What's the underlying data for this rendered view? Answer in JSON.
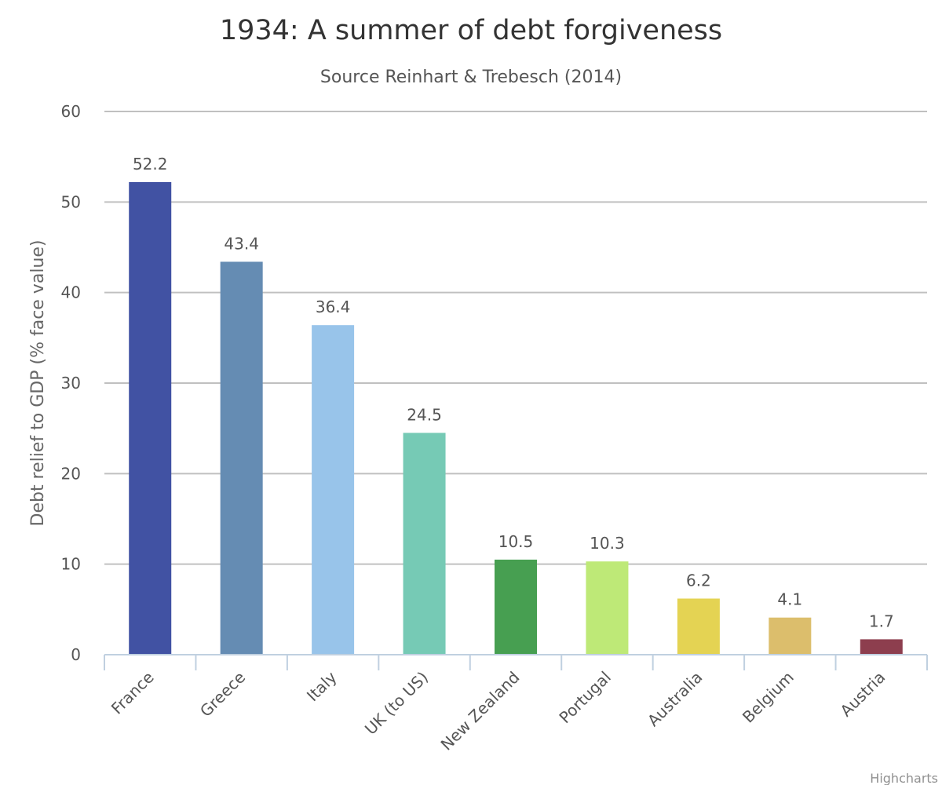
{
  "chart_data": {
    "type": "bar",
    "title": "1934: A summer of debt forgiveness",
    "subtitle": "Source Reinhart & Trebesch (2014)",
    "xlabel": "",
    "ylabel": "Debt relief to GDP (% face value)",
    "ylim": [
      0,
      60
    ],
    "yticks": [
      0,
      10,
      20,
      30,
      40,
      50,
      60
    ],
    "grid": true,
    "legend": "none",
    "categories": [
      "France",
      "Greece",
      "Italy",
      "UK (to US)",
      "New Zealand",
      "Portugal",
      "Australia",
      "Belgium",
      "Austria"
    ],
    "values": [
      52.2,
      43.4,
      36.4,
      24.5,
      10.5,
      10.3,
      6.2,
      4.1,
      1.7
    ],
    "data_labels": [
      "52.2",
      "43.4",
      "36.4",
      "24.5",
      "10.5",
      "10.3",
      "6.2",
      "4.1",
      "1.7"
    ],
    "colors": [
      "#4152a3",
      "#658cb3",
      "#98c4ea",
      "#76cab5",
      "#479f51",
      "#bee977",
      "#e4d353",
      "#dcbe6c",
      "#8d3e4e"
    ]
  },
  "credits": "Highcharts"
}
